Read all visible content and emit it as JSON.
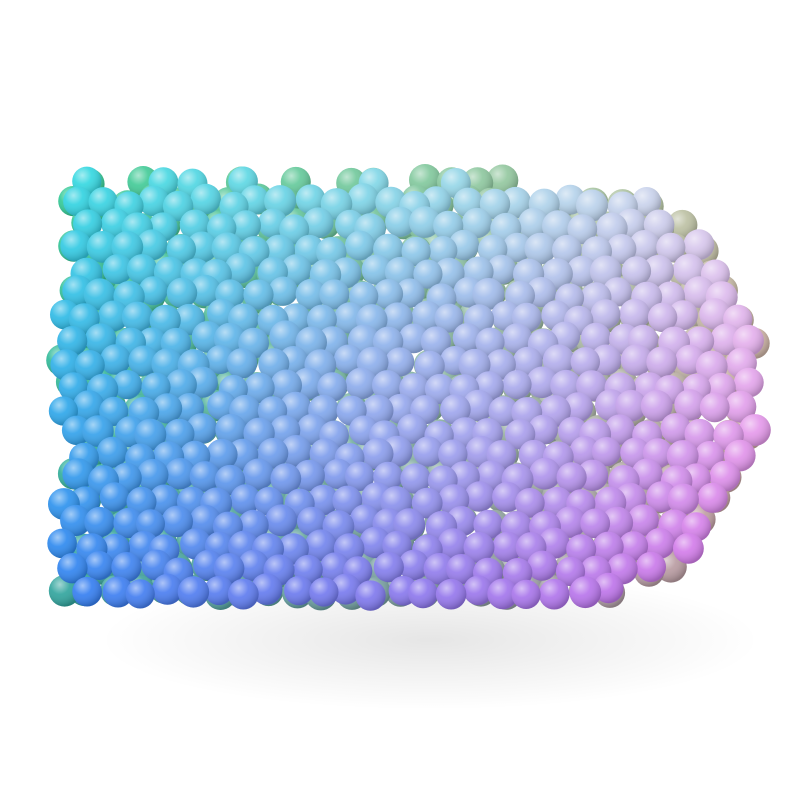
{
  "scene": {
    "subject": "sphere-cloud",
    "background_color": "#ffffff",
    "palette": {
      "top_left": "#2fd8e0",
      "bottom_left": "#2f7df2",
      "top_right": "#e8d8ef",
      "bottom_right": "#e66ee8",
      "center": "#b9b3f4",
      "inner_core_left": "#34c35a",
      "inner_core_right": "#b9b66a"
    }
  }
}
